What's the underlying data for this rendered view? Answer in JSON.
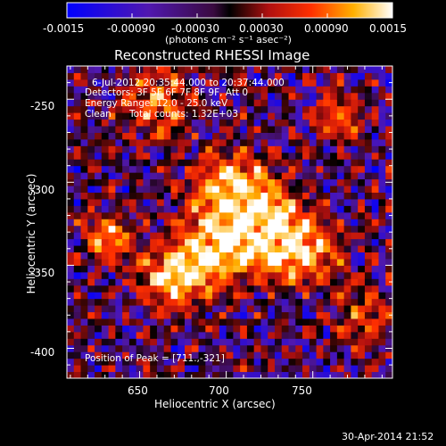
{
  "colorbar": {
    "min": -0.0015,
    "max": 0.0015,
    "ticks": [
      "-0.0015",
      "-0.00090",
      "-0.00030",
      "0.00030",
      "0.00090",
      "0.0015"
    ],
    "unit_label": "(photons cm⁻² s⁻¹ asec⁻²)"
  },
  "chart_data": {
    "type": "heatmap",
    "title": "Reconstructed RHESSI Image",
    "xlabel": "Heliocentric X (arcsec)",
    "ylabel": "Heliocentric Y (arcsec)",
    "xlim": [
      608,
      796
    ],
    "ylim": [
      -418,
      -230
    ],
    "x_ticks": [
      "650",
      "700",
      "750"
    ],
    "y_ticks": [
      "-250",
      "-300",
      "-350",
      "-400"
    ],
    "overlay": {
      "time_range": "6-Jul-2012 20:35:44.000 to 20:37:44.000",
      "detectors": "Detectors: 3F 5F 6F 7F 8F 9F, Att 0",
      "energy": "Energy Range: 12.0 - 25.0 keV",
      "method": "Clean",
      "counts": "Total counts: 1.32E+03",
      "peak": "Position of Peak = [711.,-321]"
    },
    "peak_position": [
      711,
      -321
    ],
    "colormap": "blue-purple-black-red-yellow-white"
  },
  "footer": {
    "timestamp": "30-Apr-2014 21:52"
  }
}
